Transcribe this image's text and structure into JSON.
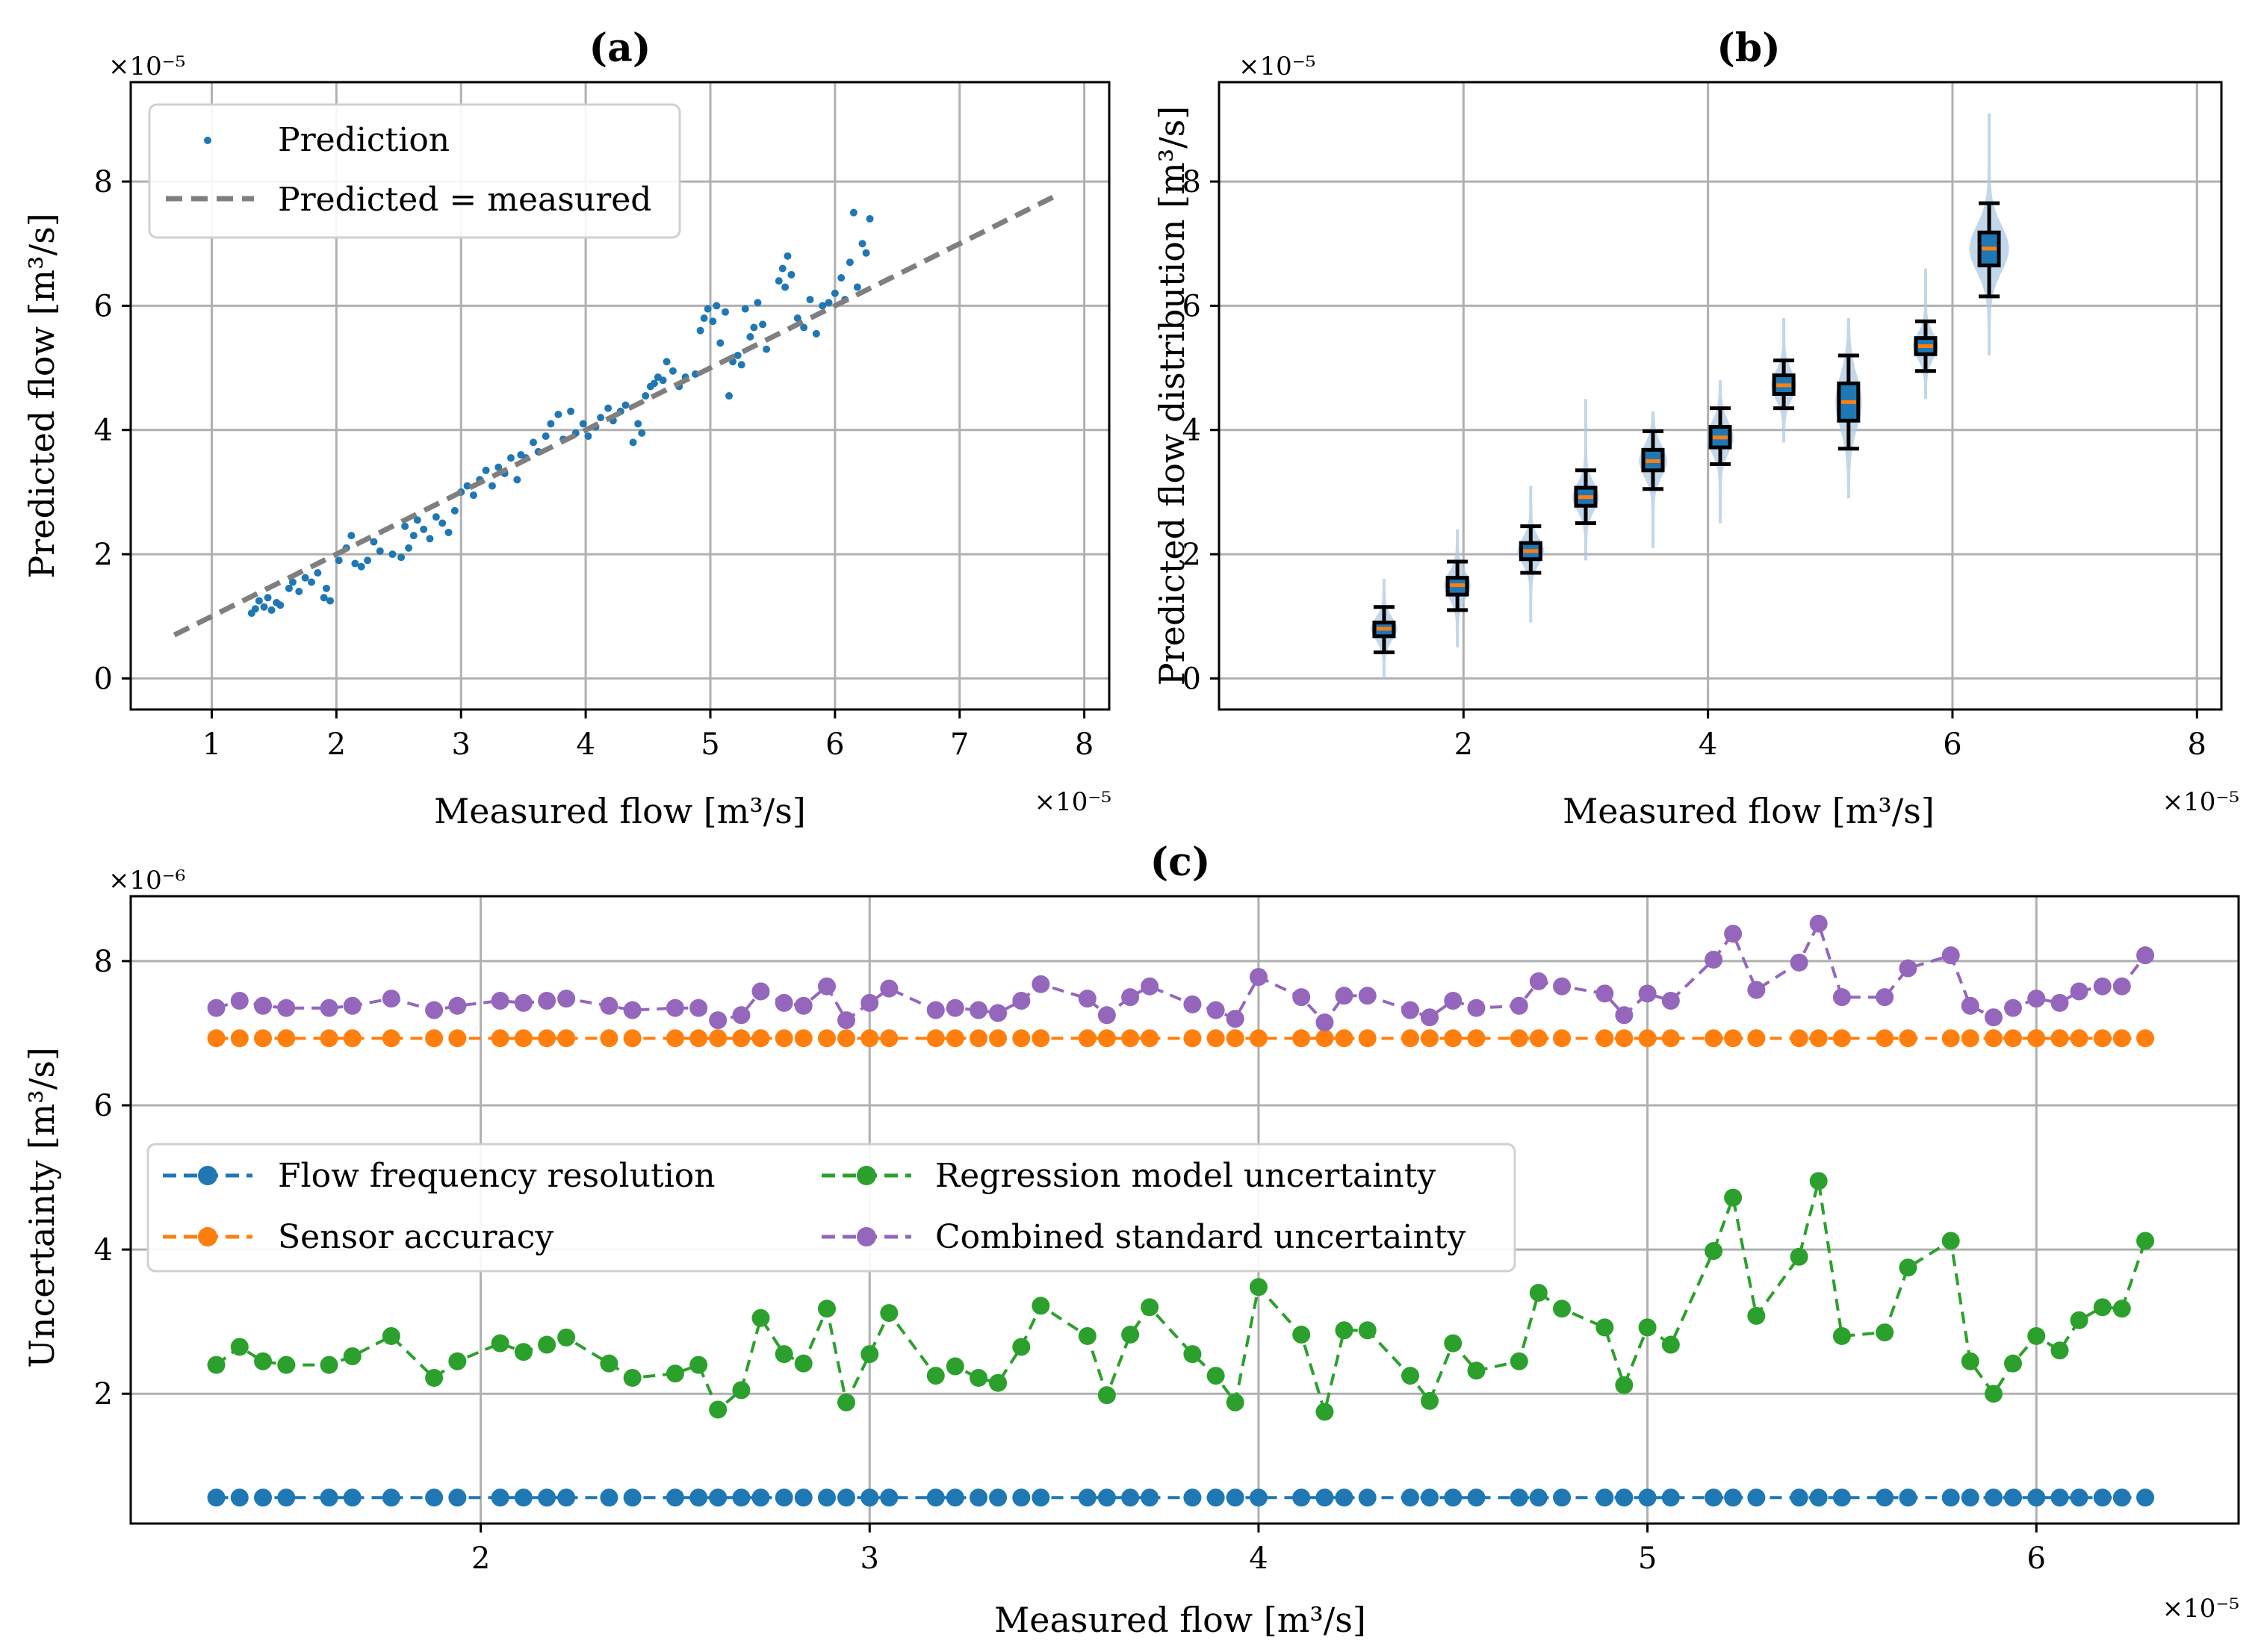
{
  "chart_data": [
    {
      "id": "a",
      "type": "scatter",
      "title": "(a)",
      "xlabel": "Measured flow [m³/s]",
      "ylabel": "Predicted flow [m³/s]",
      "x_multiplier": "×10⁻⁵",
      "y_multiplier": "×10⁻⁵",
      "xlim": [
        0.35,
        8.2
      ],
      "ylim": [
        -0.5,
        9.6
      ],
      "xticks": [
        1,
        2,
        3,
        4,
        5,
        6,
        7,
        8
      ],
      "yticks": [
        0,
        2,
        4,
        6,
        8
      ],
      "grid": true,
      "legend_position": "top-left",
      "series": [
        {
          "name": "Prediction",
          "color": "#1f77b4",
          "marker": "dot",
          "points": [
            [
              1.32,
              1.05
            ],
            [
              1.35,
              1.12
            ],
            [
              1.38,
              1.25
            ],
            [
              1.42,
              1.15
            ],
            [
              1.45,
              1.3
            ],
            [
              1.48,
              1.1
            ],
            [
              1.52,
              1.22
            ],
            [
              1.55,
              1.18
            ],
            [
              1.62,
              1.45
            ],
            [
              1.65,
              1.55
            ],
            [
              1.7,
              1.4
            ],
            [
              1.75,
              1.62
            ],
            [
              1.8,
              1.55
            ],
            [
              1.85,
              1.7
            ],
            [
              1.9,
              1.3
            ],
            [
              1.92,
              1.45
            ],
            [
              1.95,
              1.25
            ],
            [
              2.02,
              1.9
            ],
            [
              2.08,
              2.1
            ],
            [
              2.12,
              2.3
            ],
            [
              2.15,
              1.85
            ],
            [
              2.2,
              1.8
            ],
            [
              2.25,
              1.9
            ],
            [
              2.3,
              2.2
            ],
            [
              2.35,
              2.05
            ],
            [
              2.45,
              2.0
            ],
            [
              2.52,
              1.95
            ],
            [
              2.58,
              2.1
            ],
            [
              2.62,
              2.3
            ],
            [
              2.65,
              2.55
            ],
            [
              2.7,
              2.4
            ],
            [
              2.75,
              2.25
            ],
            [
              2.8,
              2.6
            ],
            [
              2.85,
              2.5
            ],
            [
              2.9,
              2.35
            ],
            [
              2.95,
              2.7
            ],
            [
              3.0,
              3.0
            ],
            [
              3.05,
              3.1
            ],
            [
              3.1,
              2.95
            ],
            [
              3.15,
              3.2
            ],
            [
              3.2,
              3.35
            ],
            [
              3.25,
              3.1
            ],
            [
              3.3,
              3.4
            ],
            [
              3.35,
              3.3
            ],
            [
              3.4,
              3.55
            ],
            [
              3.45,
              3.2
            ],
            [
              3.52,
              3.55
            ],
            [
              3.58,
              3.8
            ],
            [
              3.62,
              3.65
            ],
            [
              3.68,
              3.9
            ],
            [
              3.72,
              4.1
            ],
            [
              3.78,
              4.25
            ],
            [
              3.82,
              3.85
            ],
            [
              3.88,
              4.3
            ],
            [
              3.92,
              3.95
            ],
            [
              3.98,
              4.1
            ],
            [
              4.02,
              3.9
            ],
            [
              4.08,
              4.05
            ],
            [
              4.12,
              4.2
            ],
            [
              4.18,
              4.35
            ],
            [
              4.22,
              4.15
            ],
            [
              4.28,
              4.3
            ],
            [
              4.32,
              4.4
            ],
            [
              4.38,
              3.8
            ],
            [
              4.42,
              4.1
            ],
            [
              4.48,
              4.55
            ],
            [
              4.52,
              4.7
            ],
            [
              4.58,
              4.85
            ],
            [
              4.62,
              4.8
            ],
            [
              4.65,
              5.1
            ],
            [
              4.7,
              4.95
            ],
            [
              4.75,
              4.7
            ],
            [
              4.8,
              4.85
            ],
            [
              4.88,
              4.9
            ],
            [
              4.92,
              5.6
            ],
            [
              4.98,
              5.95
            ],
            [
              5.02,
              5.75
            ],
            [
              5.08,
              5.4
            ],
            [
              5.12,
              5.9
            ],
            [
              5.18,
              5.1
            ],
            [
              5.22,
              5.2
            ],
            [
              5.28,
              5.95
            ],
            [
              5.32,
              5.5
            ],
            [
              5.38,
              6.05
            ],
            [
              5.42,
              5.7
            ],
            [
              5.55,
              6.4
            ],
            [
              5.58,
              6.6
            ],
            [
              5.6,
              6.3
            ],
            [
              5.62,
              6.8
            ],
            [
              5.65,
              6.5
            ],
            [
              5.7,
              5.8
            ],
            [
              5.75,
              5.65
            ],
            [
              5.8,
              6.1
            ],
            [
              5.85,
              5.55
            ],
            [
              5.9,
              6.0
            ],
            [
              5.95,
              6.05
            ],
            [
              6.0,
              6.2
            ],
            [
              6.05,
              6.45
            ],
            [
              6.08,
              6.1
            ],
            [
              6.12,
              6.7
            ],
            [
              6.15,
              7.5
            ],
            [
              6.18,
              6.3
            ],
            [
              6.22,
              7.0
            ],
            [
              6.25,
              6.85
            ],
            [
              6.28,
              7.4
            ],
            [
              5.15,
              4.55
            ],
            [
              5.25,
              5.05
            ],
            [
              4.45,
              3.95
            ],
            [
              3.48,
              3.6
            ],
            [
              2.55,
              2.45
            ],
            [
              4.95,
              5.8
            ],
            [
              5.05,
              6.0
            ],
            [
              5.45,
              5.3
            ],
            [
              5.35,
              5.65
            ],
            [
              4.55,
              4.75
            ]
          ]
        },
        {
          "name": "Predicted = measured",
          "color": "#7f7f7f",
          "style": "dashed",
          "x": [
            0.7,
            7.8
          ],
          "y": [
            0.7,
            7.8
          ]
        }
      ]
    },
    {
      "id": "b",
      "type": "violin",
      "title": "(b)",
      "xlabel": "Measured flow [m³/s]",
      "ylabel": "Predicted flow distribution [m³/s]",
      "x_multiplier": "×10⁻⁵",
      "y_multiplier": "×10⁻⁵",
      "xlim": [
        0.0,
        8.2
      ],
      "ylim": [
        -0.5,
        9.6
      ],
      "xticks": [
        2,
        4,
        6,
        8
      ],
      "yticks": [
        0,
        2,
        4,
        6,
        8
      ],
      "grid": true,
      "violin_color": "#aec9e3",
      "box_color": "#1f77b4",
      "median_color": "#ff7f0e",
      "groups": [
        {
          "x": 1.35,
          "min": 0.42,
          "q1": 0.68,
          "median": 0.8,
          "q3": 0.9,
          "max": 1.15,
          "vmin": 0.0,
          "vmax": 1.6,
          "width": 0.32
        },
        {
          "x": 1.95,
          "min": 1.1,
          "q1": 1.35,
          "median": 1.5,
          "q3": 1.62,
          "max": 1.88,
          "vmin": 0.5,
          "vmax": 2.4,
          "width": 0.32
        },
        {
          "x": 2.55,
          "min": 1.7,
          "q1": 1.92,
          "median": 2.05,
          "q3": 2.18,
          "max": 2.45,
          "vmin": 0.9,
          "vmax": 3.1,
          "width": 0.32
        },
        {
          "x": 3.0,
          "min": 2.5,
          "q1": 2.78,
          "median": 2.92,
          "q3": 3.07,
          "max": 3.35,
          "vmin": 1.9,
          "vmax": 4.5,
          "width": 0.32
        },
        {
          "x": 3.55,
          "min": 3.05,
          "q1": 3.35,
          "median": 3.5,
          "q3": 3.68,
          "max": 3.98,
          "vmin": 2.1,
          "vmax": 4.3,
          "width": 0.34
        },
        {
          "x": 4.1,
          "min": 3.45,
          "q1": 3.72,
          "median": 3.88,
          "q3": 4.05,
          "max": 4.35,
          "vmin": 2.5,
          "vmax": 4.8,
          "width": 0.32
        },
        {
          "x": 4.62,
          "min": 4.35,
          "q1": 4.58,
          "median": 4.72,
          "q3": 4.88,
          "max": 5.12,
          "vmin": 3.8,
          "vmax": 5.8,
          "width": 0.3
        },
        {
          "x": 5.15,
          "min": 3.7,
          "q1": 4.15,
          "median": 4.45,
          "q3": 4.75,
          "max": 5.2,
          "vmin": 2.9,
          "vmax": 5.8,
          "width": 0.32
        },
        {
          "x": 5.78,
          "min": 4.95,
          "q1": 5.22,
          "median": 5.35,
          "q3": 5.48,
          "max": 5.75,
          "vmin": 4.5,
          "vmax": 6.6,
          "width": 0.3
        },
        {
          "x": 6.3,
          "min": 6.15,
          "q1": 6.65,
          "median": 6.92,
          "q3": 7.18,
          "max": 7.65,
          "vmin": 5.2,
          "vmax": 9.1,
          "width": 0.5
        }
      ]
    },
    {
      "id": "c",
      "type": "line",
      "title": "(c)",
      "xlabel": "Measured flow [m³/s]",
      "ylabel": "Uncertainty [m³/s]",
      "x_multiplier": "×10⁻⁵",
      "y_multiplier": "×10⁻⁶",
      "xlim": [
        1.1,
        6.52
      ],
      "ylim": [
        0.2,
        8.9
      ],
      "xticks": [
        2,
        3,
        4,
        5,
        6
      ],
      "yticks": [
        2,
        4,
        6,
        8
      ],
      "grid": true,
      "legend_position": "center-left",
      "x": [
        1.32,
        1.38,
        1.44,
        1.5,
        1.61,
        1.67,
        1.77,
        1.88,
        1.94,
        2.05,
        2.11,
        2.17,
        2.22,
        2.33,
        2.39,
        2.5,
        2.56,
        2.61,
        2.67,
        2.72,
        2.78,
        2.83,
        2.89,
        2.94,
        3.0,
        3.05,
        3.17,
        3.22,
        3.28,
        3.33,
        3.39,
        3.44,
        3.56,
        3.61,
        3.67,
        3.72,
        3.83,
        3.89,
        3.94,
        4.0,
        4.11,
        4.17,
        4.22,
        4.28,
        4.39,
        4.44,
        4.5,
        4.56,
        4.67,
        4.72,
        4.78,
        4.89,
        4.94,
        5.0,
        5.06,
        5.17,
        5.22,
        5.28,
        5.39,
        5.44,
        5.5,
        5.61,
        5.67,
        5.78,
        5.83,
        5.89,
        5.94,
        6.0,
        6.06,
        6.11,
        6.17,
        6.22,
        6.28
      ],
      "series": [
        {
          "name": "Flow frequency resolution",
          "color": "#1f77b4",
          "constant": 0.56
        },
        {
          "name": "Sensor accuracy",
          "color": "#ff7f0e",
          "constant": 6.93
        },
        {
          "name": "Regression model uncertainty",
          "color": "#2ca02c",
          "values": [
            2.4,
            2.65,
            2.45,
            2.4,
            2.4,
            2.52,
            2.8,
            2.22,
            2.45,
            2.7,
            2.58,
            2.68,
            2.78,
            2.42,
            2.22,
            2.28,
            2.4,
            1.78,
            2.05,
            3.05,
            2.55,
            2.42,
            3.18,
            1.88,
            2.55,
            3.12,
            2.25,
            2.38,
            2.22,
            2.15,
            2.65,
            3.22,
            2.8,
            1.98,
            2.82,
            3.2,
            2.55,
            2.25,
            1.88,
            3.48,
            2.82,
            1.75,
            2.88,
            2.88,
            2.25,
            1.9,
            2.7,
            2.32,
            2.45,
            3.4,
            3.18,
            2.92,
            2.12,
            2.92,
            2.68,
            3.98,
            4.72,
            3.08,
            3.9,
            4.95,
            2.8,
            2.85,
            3.75,
            4.12,
            2.45,
            2.0,
            2.42,
            2.8,
            2.6,
            3.02,
            3.2,
            3.18,
            4.12
          ]
        },
        {
          "name": "Combined standard uncertainty",
          "color": "#9467bd",
          "values": [
            7.35,
            7.45,
            7.38,
            7.35,
            7.35,
            7.38,
            7.48,
            7.32,
            7.38,
            7.45,
            7.42,
            7.45,
            7.48,
            7.38,
            7.32,
            7.35,
            7.35,
            7.18,
            7.25,
            7.58,
            7.42,
            7.38,
            7.65,
            7.18,
            7.42,
            7.62,
            7.32,
            7.35,
            7.32,
            7.28,
            7.45,
            7.68,
            7.48,
            7.25,
            7.5,
            7.65,
            7.4,
            7.32,
            7.2,
            7.78,
            7.5,
            7.15,
            7.52,
            7.52,
            7.32,
            7.22,
            7.45,
            7.35,
            7.38,
            7.72,
            7.65,
            7.55,
            7.25,
            7.55,
            7.45,
            8.02,
            8.38,
            7.6,
            7.98,
            8.52,
            7.5,
            7.5,
            7.9,
            8.08,
            7.38,
            7.22,
            7.35,
            7.48,
            7.42,
            7.58,
            7.65,
            7.65,
            8.08
          ]
        }
      ]
    }
  ]
}
